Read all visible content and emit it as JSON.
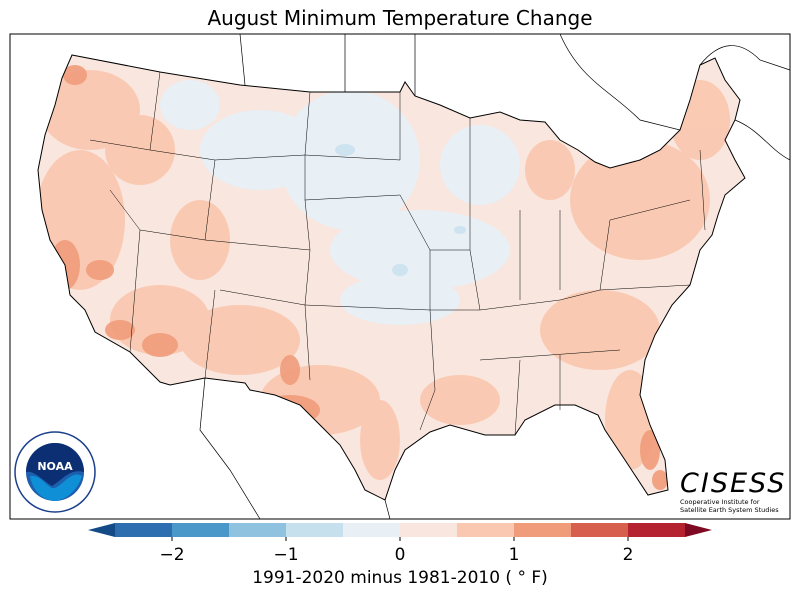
{
  "title": "August Minimum Temperature Change",
  "colorbar": {
    "label": "1991-2020 minus 1981-2010 ( ° F)",
    "min": -2.5,
    "max": 2.5,
    "step": 0.5,
    "extend": "both",
    "ticks": [
      "−2",
      "−1",
      "0",
      "1",
      "2"
    ],
    "tick_values": [
      -2,
      -1,
      0,
      1,
      2
    ],
    "colors": [
      "#2d6eb0",
      "#4a98c9",
      "#8fc2de",
      "#c6e0ed",
      "#e8eff5",
      "#f9e6de",
      "#fac8b0",
      "#f09c7b",
      "#d6604d",
      "#b52230"
    ],
    "under_color": "#144b87",
    "over_color": "#7d0a22"
  },
  "logos": {
    "noaa": "NOAA",
    "noaa_ring": "NATIONAL OCEANIC AND ATMOSPHERIC ADMINISTRATION · U.S. DEPARTMENT OF COMMERCE",
    "cisess": "CISESS",
    "cisess_sub1": "Cooperative Institute for",
    "cisess_sub2": "Satellite Earth System Studies"
  }
}
